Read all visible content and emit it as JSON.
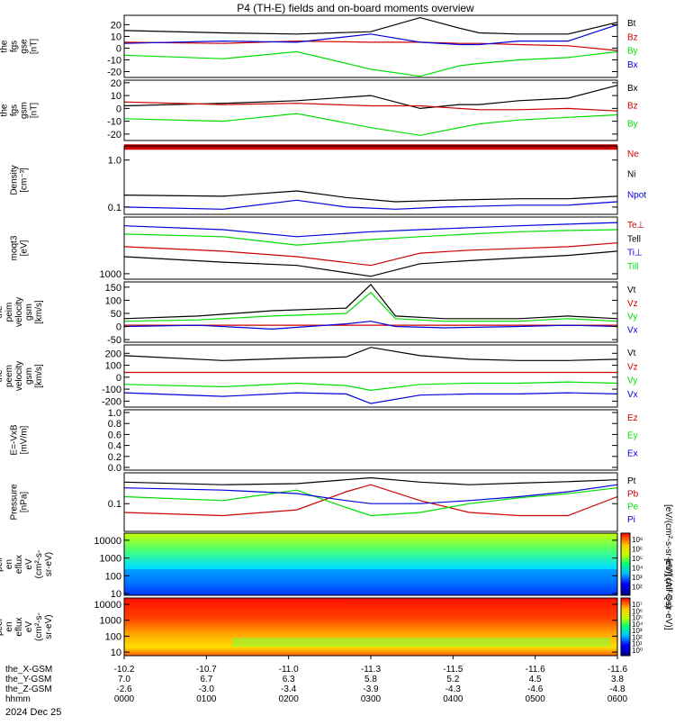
{
  "title": "P4 (TH-E) fields and on-board moments overview",
  "date_label": "2024 Dec 25",
  "colorbar_labels": {
    "top": "[eV/(cm²-s-sr-eV)] (All Qs)",
    "bottom": "[eV/(cm²-s-sr-eV)]"
  },
  "colorbar_ticks": {
    "top": [
      "10⁸",
      "10⁶",
      "10⁵",
      "10⁴",
      "10³",
      "10²"
    ],
    "bottom": [
      "10⁷",
      "10⁶",
      "10⁵",
      "10⁴",
      "10³",
      "10²",
      "10¹",
      "10⁰"
    ]
  },
  "x_axis": {
    "row_labels": [
      "the_X-GSM",
      "the_Y-GSM",
      "the_Z-GSM",
      "hhmm"
    ],
    "columns": [
      {
        "x": "-10.2",
        "y": "7.0",
        "z": "-2.6",
        "t": "0000"
      },
      {
        "x": "-10.7",
        "y": "6.7",
        "z": "-3.0",
        "t": "0100"
      },
      {
        "x": "-11.0",
        "y": "6.3",
        "z": "-3.4",
        "t": "0200"
      },
      {
        "x": "-11.3",
        "y": "5.8",
        "z": "-3.9",
        "t": "0300"
      },
      {
        "x": "-11.5",
        "y": "5.2",
        "z": "-4.3",
        "t": "0400"
      },
      {
        "x": "-11.6",
        "y": "4.5",
        "z": "-4.6",
        "t": "0500"
      },
      {
        "x": "-11.6",
        "y": "3.8",
        "z": "-4.8",
        "t": "0600"
      }
    ]
  },
  "colors": {
    "black": "#000000",
    "red": "#cc0000",
    "green": "#00dd00",
    "blue": "#0000dd"
  },
  "chart_data": [
    {
      "type": "line",
      "panel": "fgs_gse",
      "ylabel": [
        "the",
        "fgs",
        "gse",
        "[nT]"
      ],
      "ylim": [
        -25,
        28
      ],
      "yticks": [
        "20",
        "10",
        "0",
        "-10",
        "-20"
      ],
      "tick_values": [
        20,
        10,
        0,
        -10,
        -20
      ],
      "series": [
        {
          "name": "Bt",
          "color": "#000000",
          "x": [
            0,
            20,
            35,
            50,
            60,
            68,
            72,
            80,
            90,
            100
          ],
          "y": [
            15,
            13,
            12,
            14,
            26,
            17,
            13,
            12,
            12,
            22
          ]
        },
        {
          "name": "Bz",
          "color": "#cc0000",
          "x": [
            0,
            20,
            35,
            50,
            60,
            68,
            72,
            80,
            90,
            100
          ],
          "y": [
            5,
            4,
            6,
            5,
            5,
            4,
            4,
            3,
            2,
            -2
          ]
        },
        {
          "name": "By",
          "color": "#00dd00",
          "x": [
            0,
            20,
            35,
            50,
            60,
            68,
            72,
            80,
            90,
            100
          ],
          "y": [
            -6,
            -9,
            -3,
            -18,
            -24,
            -15,
            -13,
            -10,
            -8,
            -3
          ]
        },
        {
          "name": "Bx",
          "color": "#0000dd",
          "x": [
            0,
            20,
            35,
            50,
            60,
            68,
            72,
            80,
            90,
            100
          ],
          "y": [
            4,
            6,
            5,
            12,
            5,
            3,
            3,
            6,
            6,
            20
          ]
        }
      ]
    },
    {
      "type": "line",
      "panel": "fgs_gsm",
      "ylabel": [
        "the",
        "fgs",
        "gsm",
        "[nT]"
      ],
      "ylim": [
        -25,
        22
      ],
      "yticks": [
        "20",
        "10",
        "0",
        "-10",
        "-20"
      ],
      "tick_values": [
        20,
        10,
        0,
        -10,
        -20
      ],
      "series": [
        {
          "name": "Bx",
          "color": "#000000",
          "x": [
            0,
            20,
            35,
            50,
            60,
            68,
            72,
            80,
            90,
            100
          ],
          "y": [
            2,
            4,
            6,
            10,
            0,
            3,
            3,
            6,
            8,
            18
          ]
        },
        {
          "name": "Bz",
          "color": "#cc0000",
          "x": [
            0,
            20,
            35,
            50,
            60,
            68,
            72,
            80,
            90,
            100
          ],
          "y": [
            5,
            3,
            4,
            2,
            2,
            0,
            -1,
            -1,
            0,
            -2
          ]
        },
        {
          "name": "By",
          "color": "#00dd00",
          "x": [
            0,
            20,
            35,
            50,
            60,
            68,
            72,
            80,
            90,
            100
          ],
          "y": [
            -8,
            -10,
            -4,
            -15,
            -21,
            -15,
            -12,
            -9,
            -7,
            -5
          ]
        }
      ]
    },
    {
      "type": "line",
      "panel": "density",
      "ylabel": [
        "Density",
        "[cm⁻³]"
      ],
      "ylim": [
        0.07,
        2.0
      ],
      "scale": "log",
      "yticks": [
        "1.0",
        "0.1"
      ],
      "tick_values": [
        1.0,
        0.1
      ],
      "series": [
        {
          "name": "Ne",
          "color": "#cc0000",
          "x": [
            0,
            100
          ],
          "y": [
            1.9,
            1.9
          ]
        },
        {
          "name": "Ni",
          "color": "#000000",
          "x": [
            0,
            20,
            35,
            45,
            55,
            65,
            80,
            90,
            100
          ],
          "y": [
            0.18,
            0.17,
            0.22,
            0.16,
            0.13,
            0.14,
            0.15,
            0.15,
            0.17
          ]
        },
        {
          "name": "Npot",
          "color": "#0000dd",
          "x": [
            0,
            20,
            35,
            45,
            55,
            65,
            80,
            90,
            100
          ],
          "y": [
            0.1,
            0.09,
            0.14,
            0.1,
            0.09,
            0.1,
            0.11,
            0.11,
            0.13
          ]
        }
      ]
    },
    {
      "type": "line",
      "panel": "temperature",
      "ylabel": [
        "moqt3",
        "[eV]"
      ],
      "ylim": [
        800,
        10000
      ],
      "scale": "log",
      "yticks": [
        "1000"
      ],
      "tick_values": [
        1000
      ],
      "series": [
        {
          "name": "Te⊥",
          "color": "#cc0000",
          "x": [
            0,
            20,
            35,
            50,
            60,
            70,
            80,
            90,
            100
          ],
          "y": [
            3000,
            2500,
            2000,
            1400,
            2300,
            2600,
            2800,
            3000,
            3500
          ]
        },
        {
          "name": "Tell",
          "color": "#000000",
          "x": [
            0,
            20,
            35,
            50,
            60,
            70,
            80,
            90,
            100
          ],
          "y": [
            2000,
            1600,
            1400,
            900,
            1500,
            1700,
            1900,
            2100,
            2500
          ]
        },
        {
          "name": "Ti⊥",
          "color": "#0000dd",
          "x": [
            0,
            20,
            35,
            50,
            60,
            70,
            80,
            90,
            100
          ],
          "y": [
            7000,
            6000,
            4500,
            5500,
            6000,
            6500,
            7000,
            7500,
            8000
          ]
        },
        {
          "name": "Till",
          "color": "#00dd00",
          "x": [
            0,
            20,
            35,
            50,
            60,
            70,
            80,
            90,
            100
          ],
          "y": [
            5000,
            4500,
            3200,
            4000,
            4500,
            5000,
            5500,
            5800,
            6000
          ]
        }
      ]
    },
    {
      "type": "line",
      "panel": "velocity_gsm",
      "ylabel": [
        "the",
        "peim",
        "velocity",
        "gsm",
        "[km/s]"
      ],
      "ylim": [
        -60,
        170
      ],
      "yticks": [
        "150",
        "100",
        "50",
        "0",
        "-50"
      ],
      "tick_values": [
        150,
        100,
        50,
        0,
        -50
      ],
      "series": [
        {
          "name": "Vt",
          "color": "#000000",
          "x": [
            0,
            15,
            30,
            45,
            50,
            55,
            65,
            80,
            90,
            100
          ],
          "y": [
            30,
            40,
            60,
            70,
            160,
            40,
            30,
            30,
            40,
            30
          ]
        },
        {
          "name": "Vz",
          "color": "#cc0000",
          "x": [
            0,
            100
          ],
          "y": [
            5,
            5
          ]
        },
        {
          "name": "Vy",
          "color": "#00dd00",
          "x": [
            0,
            15,
            30,
            45,
            50,
            55,
            65,
            80,
            90,
            100
          ],
          "y": [
            20,
            25,
            40,
            50,
            130,
            30,
            20,
            20,
            30,
            20
          ]
        },
        {
          "name": "Vx",
          "color": "#0000dd",
          "x": [
            0,
            15,
            30,
            45,
            50,
            55,
            65,
            80,
            90,
            100
          ],
          "y": [
            0,
            5,
            -10,
            10,
            20,
            0,
            -5,
            0,
            5,
            0
          ]
        }
      ]
    },
    {
      "type": "line",
      "panel": "velocity_gse",
      "ylabel": [
        "the",
        "peem",
        "velocity",
        "gsm",
        "[km/s]"
      ],
      "ylim": [
        -250,
        270
      ],
      "yticks": [
        "200",
        "100",
        "0",
        "-100",
        "-200"
      ],
      "tick_values": [
        200,
        100,
        0,
        -100,
        -200
      ],
      "series": [
        {
          "name": "Vt",
          "color": "#000000",
          "x": [
            0,
            20,
            35,
            45,
            50,
            60,
            70,
            80,
            90,
            100
          ],
          "y": [
            180,
            140,
            160,
            170,
            250,
            180,
            150,
            140,
            140,
            150
          ]
        },
        {
          "name": "Vz",
          "color": "#cc0000",
          "x": [
            0,
            100
          ],
          "y": [
            40,
            40
          ]
        },
        {
          "name": "Vy",
          "color": "#00dd00",
          "x": [
            0,
            20,
            35,
            45,
            50,
            60,
            70,
            80,
            90,
            100
          ],
          "y": [
            -60,
            -80,
            -50,
            -70,
            -110,
            -60,
            -50,
            -50,
            -40,
            -50
          ]
        },
        {
          "name": "Vx",
          "color": "#0000dd",
          "x": [
            0,
            20,
            35,
            45,
            50,
            60,
            70,
            80,
            90,
            100
          ],
          "y": [
            -130,
            -160,
            -130,
            -140,
            -220,
            -150,
            -140,
            -140,
            -130,
            -140
          ]
        }
      ]
    },
    {
      "type": "line",
      "panel": "efield",
      "ylabel": [
        "E=-VxB",
        "[mV/m]"
      ],
      "ylim": [
        -0.05,
        1.05
      ],
      "yticks": [
        "1.0",
        "0.8",
        "0.6",
        "0.4",
        "0.2",
        "0.0"
      ],
      "tick_values": [
        1.0,
        0.8,
        0.6,
        0.4,
        0.2,
        0.0
      ],
      "series": [
        {
          "name": "Ez",
          "color": "#cc0000",
          "x": [],
          "y": []
        },
        {
          "name": "Ey",
          "color": "#00dd00",
          "x": [],
          "y": []
        },
        {
          "name": "Ex",
          "color": "#0000dd",
          "x": [],
          "y": []
        }
      ]
    },
    {
      "type": "line",
      "panel": "pressure",
      "ylabel": [
        "Pressure",
        "[nPa]"
      ],
      "ylim": [
        0.02,
        0.6
      ],
      "scale": "log",
      "yticks": [
        "0.1"
      ],
      "tick_values": [
        0.1
      ],
      "series": [
        {
          "name": "Pt",
          "color": "#000000",
          "x": [
            0,
            20,
            35,
            50,
            60,
            70,
            80,
            90,
            100
          ],
          "y": [
            0.35,
            0.3,
            0.32,
            0.45,
            0.35,
            0.3,
            0.33,
            0.36,
            0.4
          ]
        },
        {
          "name": "Pb",
          "color": "#cc0000",
          "x": [
            0,
            20,
            35,
            45,
            50,
            60,
            70,
            80,
            90,
            100
          ],
          "y": [
            0.06,
            0.05,
            0.07,
            0.2,
            0.3,
            0.12,
            0.06,
            0.05,
            0.05,
            0.15
          ]
        },
        {
          "name": "Pe",
          "color": "#00dd00",
          "x": [
            0,
            20,
            35,
            45,
            50,
            60,
            70,
            80,
            90,
            100
          ],
          "y": [
            0.15,
            0.12,
            0.22,
            0.08,
            0.05,
            0.06,
            0.1,
            0.14,
            0.18,
            0.25
          ]
        },
        {
          "name": "Pi",
          "color": "#0000dd",
          "x": [
            0,
            20,
            35,
            45,
            50,
            60,
            70,
            80,
            90,
            100
          ],
          "y": [
            0.25,
            0.22,
            0.18,
            0.12,
            0.1,
            0.1,
            0.12,
            0.15,
            0.2,
            0.3
          ]
        }
      ]
    },
    {
      "type": "heatmap",
      "panel": "ion_spectrogram",
      "ylabel": [
        "the",
        "peir",
        "en",
        "eflux",
        "eV",
        "(cm²-s-",
        "sr-eV)"
      ],
      "ylim": [
        8,
        25000
      ],
      "scale": "log",
      "yticks": [
        "10000",
        "1000",
        "100",
        "10"
      ],
      "tick_values": [
        10000,
        1000,
        100,
        10
      ]
    },
    {
      "type": "heatmap",
      "panel": "electron_spectrogram",
      "ylabel": [
        "the",
        "peer",
        "en",
        "eflux",
        "eV",
        "(cm²-s-",
        "sr-eV)"
      ],
      "ylim": [
        6,
        25000
      ],
      "scale": "log",
      "yticks": [
        "10000",
        "1000",
        "100",
        "10"
      ],
      "tick_values": [
        10000,
        1000,
        100,
        10
      ]
    }
  ]
}
